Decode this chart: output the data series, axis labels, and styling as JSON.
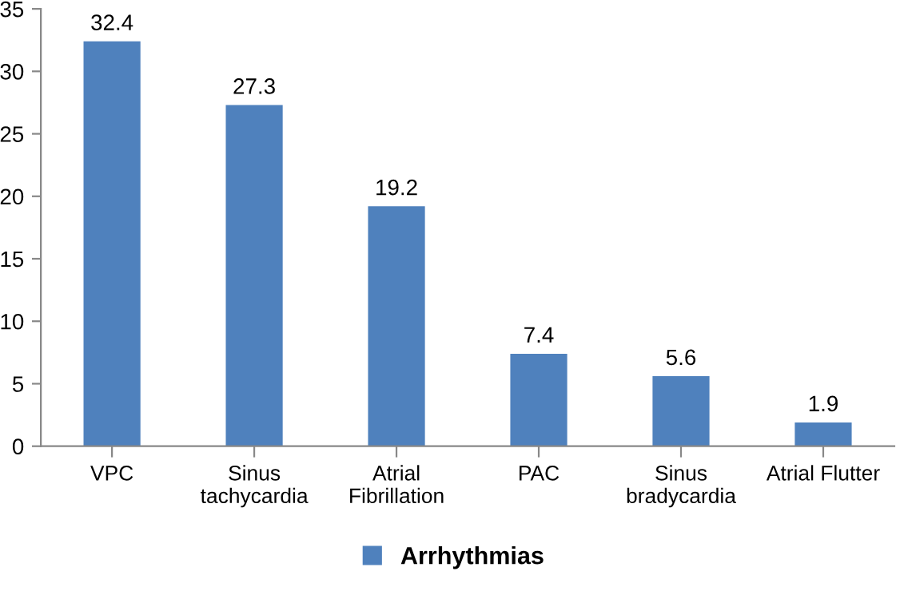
{
  "chart_data": {
    "type": "bar",
    "categories": [
      "VPC",
      "Sinus\ntachycardia",
      "Atrial\nFibrillation",
      "PAC",
      "Sinus\nbradycardia",
      "Atrial Flutter"
    ],
    "series": [
      {
        "name": "Arrhythmias",
        "color": "#4f81bd",
        "values": [
          32.4,
          27.3,
          19.2,
          7.4,
          5.6,
          1.9
        ]
      }
    ],
    "ylim": [
      0,
      35
    ],
    "yticks": [
      0,
      5,
      10,
      15,
      20,
      25,
      30,
      35
    ],
    "data_labels": true,
    "grid": false,
    "legend": "bottom"
  }
}
